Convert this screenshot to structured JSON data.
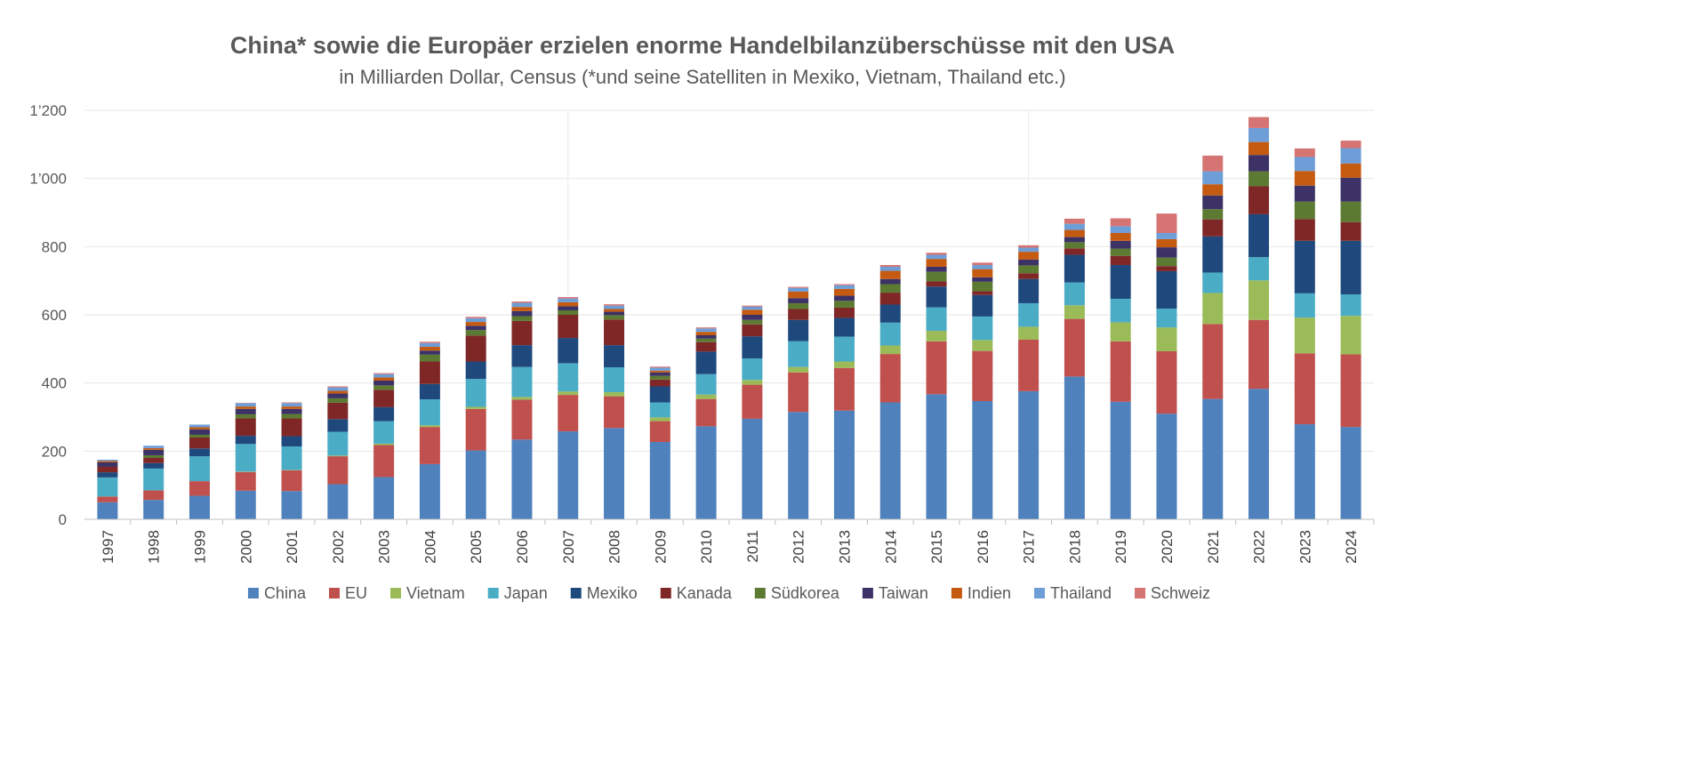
{
  "chart_data": {
    "type": "bar",
    "stacked": true,
    "title": "China* sowie die Europäer erzielen enorme Handelbilanzüberschüsse mit den USA",
    "subtitle": "in Milliarden Dollar, Census (*und seine Satelliten in Mexiko, Vietnam, Thailand etc.)",
    "xlabel": "",
    "ylabel": "",
    "ylim": [
      0,
      1200
    ],
    "yticks": [
      0,
      200,
      400,
      600,
      800,
      1000,
      1200
    ],
    "ytick_labels": [
      "0",
      "200",
      "400",
      "600",
      "800",
      "1’000",
      "1’200"
    ],
    "grid": true,
    "legend_position": "bottom",
    "categories": [
      "1997",
      "1998",
      "1999",
      "2000",
      "2001",
      "2002",
      "2003",
      "2004",
      "2005",
      "2006",
      "2007",
      "2008",
      "2009",
      "2010",
      "2011",
      "2012",
      "2013",
      "2014",
      "2015",
      "2016",
      "2017",
      "2018",
      "2019",
      "2020",
      "2021",
      "2022",
      "2023",
      "2024"
    ],
    "series": [
      {
        "name": "China",
        "color": "#4F81BD",
        "values": [
          50,
          57,
          69,
          84,
          83,
          103,
          124,
          162,
          202,
          234,
          258,
          268,
          227,
          273,
          295,
          315,
          319,
          343,
          367,
          347,
          376,
          419,
          345,
          310,
          353,
          383,
          279,
          271
        ]
      },
      {
        "name": "EU",
        "color": "#C0504D",
        "values": [
          17,
          28,
          43,
          55,
          61,
          82,
          94,
          109,
          122,
          117,
          107,
          93,
          61,
          80,
          100,
          116,
          125,
          142,
          155,
          147,
          151,
          169,
          177,
          183,
          220,
          202,
          208,
          213
        ]
      },
      {
        "name": "Vietnam",
        "color": "#9BBB59",
        "values": [
          0,
          0,
          0,
          1,
          1,
          2,
          4,
          5,
          6,
          8,
          10,
          12,
          11,
          13,
          14,
          16,
          19,
          25,
          31,
          32,
          38,
          40,
          56,
          70,
          91,
          116,
          105,
          113
        ]
      },
      {
        "name": "Japan",
        "color": "#4BACC6",
        "values": [
          56,
          64,
          73,
          81,
          69,
          70,
          66,
          76,
          82,
          88,
          83,
          73,
          44,
          60,
          63,
          76,
          73,
          67,
          69,
          69,
          69,
          67,
          69,
          55,
          60,
          68,
          71,
          63
        ]
      },
      {
        "name": "Mexiko",
        "color": "#1F497D",
        "values": [
          15,
          16,
          23,
          24,
          30,
          37,
          41,
          45,
          51,
          64,
          74,
          65,
          47,
          66,
          65,
          62,
          55,
          53,
          61,
          63,
          71,
          81,
          99,
          110,
          106,
          126,
          154,
          157
        ]
      },
      {
        "name": "Kanada",
        "color": "#7F2727",
        "values": [
          16,
          15,
          32,
          51,
          52,
          48,
          51,
          66,
          76,
          71,
          68,
          75,
          20,
          28,
          35,
          32,
          30,
          35,
          15,
          11,
          17,
          19,
          27,
          15,
          50,
          82,
          64,
          55
        ]
      },
      {
        "name": "Südkorea",
        "color": "#5C7A32",
        "values": [
          0,
          8,
          8,
          12,
          13,
          13,
          13,
          20,
          16,
          14,
          13,
          13,
          11,
          10,
          13,
          17,
          20,
          25,
          28,
          28,
          23,
          18,
          21,
          25,
          30,
          44,
          51,
          60
        ]
      },
      {
        "name": "Taiwan",
        "color": "#3C3266",
        "values": [
          13,
          16,
          16,
          16,
          15,
          14,
          14,
          12,
          13,
          15,
          12,
          10,
          10,
          10,
          15,
          15,
          15,
          15,
          15,
          13,
          17,
          15,
          23,
          30,
          40,
          48,
          47,
          70
        ]
      },
      {
        "name": "Indien",
        "color": "#C55A11",
        "values": [
          4,
          5,
          6,
          7,
          7,
          8,
          9,
          11,
          11,
          12,
          12,
          8,
          5,
          10,
          15,
          19,
          20,
          24,
          23,
          24,
          23,
          21,
          23,
          24,
          33,
          38,
          43,
          42
        ]
      },
      {
        "name": "Thailand",
        "color": "#6E9ED8",
        "values": [
          4,
          7,
          8,
          10,
          10,
          10,
          10,
          11,
          11,
          12,
          11,
          10,
          9,
          10,
          9,
          11,
          11,
          12,
          12,
          12,
          12,
          18,
          20,
          18,
          38,
          41,
          41,
          45
        ]
      },
      {
        "name": "Schweiz",
        "color": "#D67373",
        "values": [
          0,
          0,
          0,
          1,
          2,
          3,
          3,
          4,
          4,
          4,
          4,
          4,
          3,
          3,
          3,
          3,
          3,
          5,
          6,
          7,
          7,
          15,
          23,
          57,
          46,
          32,
          25,
          22
        ]
      }
    ]
  }
}
